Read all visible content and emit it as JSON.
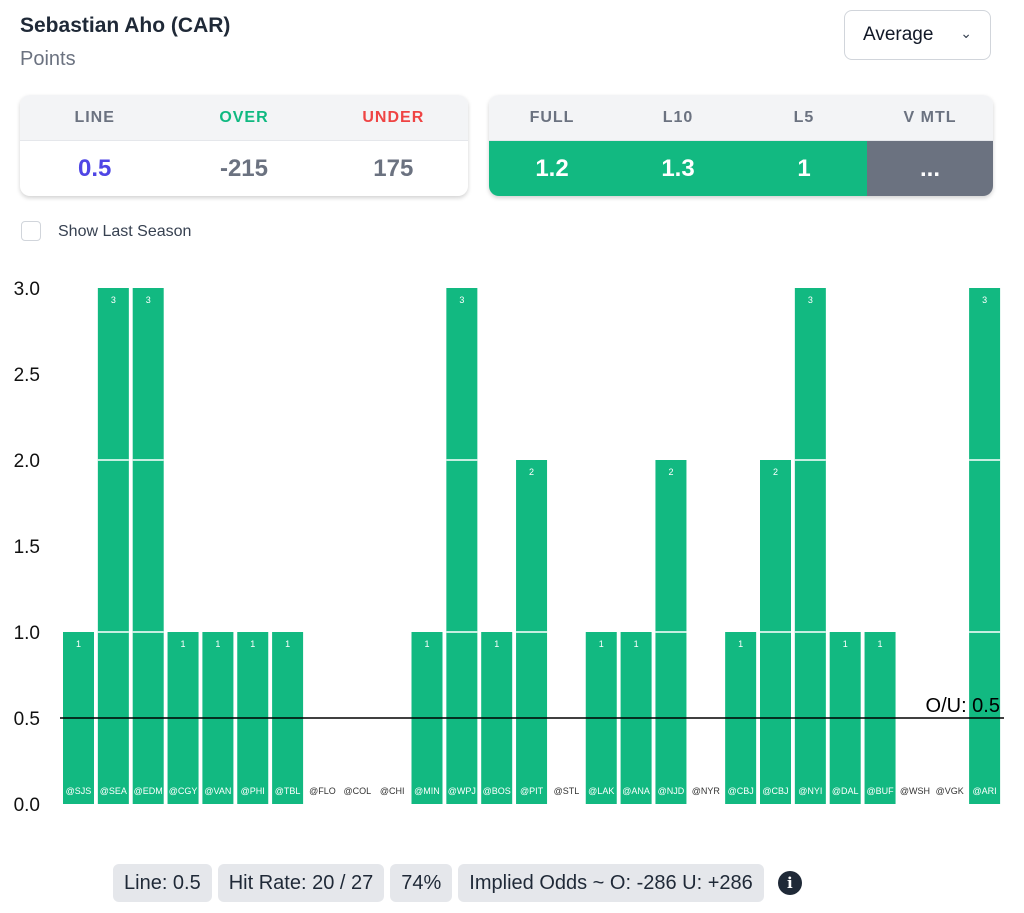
{
  "header": {
    "title": "Sebastian Aho (CAR)",
    "subtitle": "Points",
    "select_value": "Average"
  },
  "odds_card": {
    "headers": [
      "LINE",
      "OVER",
      "UNDER"
    ],
    "values": [
      "0.5",
      "-215",
      "175"
    ]
  },
  "avg_card": {
    "headers": [
      "FULL",
      "L10",
      "L5",
      "V MTL"
    ],
    "values": [
      "1.2",
      "1.3",
      "1",
      "..."
    ]
  },
  "colors": {
    "green": "#12b981",
    "gray": "#6b7280",
    "line": "#4f46e5",
    "over": "#10b981",
    "under": "#ef4444"
  },
  "show_last_season": {
    "label": "Show Last Season",
    "checked": false
  },
  "footer": {
    "line": "Line: 0.5",
    "hit_rate": "Hit Rate: 20 / 27",
    "pct": "74%",
    "implied": "Implied Odds ~ O: -286 U: +286",
    "info_icon": "i"
  },
  "chart_data": {
    "type": "bar",
    "categories": [
      "@SJS",
      "@SEA",
      "@EDM",
      "@CGY",
      "@VAN",
      "@PHI",
      "@TBL",
      "@FLO",
      "@COL",
      "@CHI",
      "@MIN",
      "@WPJ",
      "@BOS",
      "@PIT",
      "@STL",
      "@LAK",
      "@ANA",
      "@NJD",
      "@NYR",
      "@CBJ",
      "@CBJ",
      "@NYI",
      "@DAL",
      "@BUF",
      "@WSH",
      "@VGK",
      "@ARI"
    ],
    "values": [
      1,
      3,
      3,
      1,
      1,
      1,
      1,
      0,
      0,
      0,
      1,
      3,
      1,
      2,
      0,
      1,
      1,
      2,
      0,
      1,
      2,
      3,
      1,
      1,
      0,
      0,
      3
    ],
    "ylim": [
      0,
      3
    ],
    "yticks": [
      "0.0",
      "0.5",
      "1.0",
      "1.5",
      "2.0",
      "2.5",
      "3.0"
    ],
    "reference_line": {
      "value": 0.5,
      "label": "O/U: 0.5"
    }
  }
}
